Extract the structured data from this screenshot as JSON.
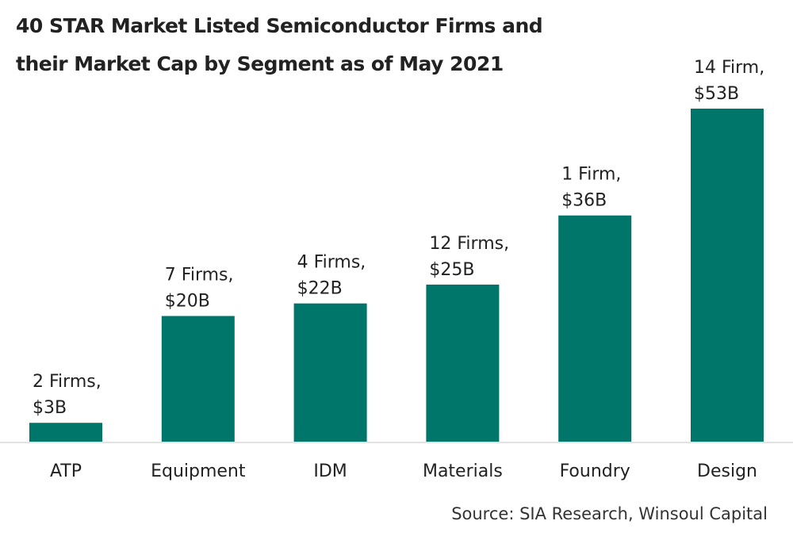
{
  "chart_data": {
    "type": "bar",
    "title_lines": [
      "40 STAR Market Listed Semiconductor Firms and",
      "their Market Cap by Segment as of May 2021"
    ],
    "categories": [
      "ATP",
      "Equipment",
      "IDM",
      "Materials",
      "Foundry",
      "Design"
    ],
    "values": [
      3,
      20,
      22,
      25,
      36,
      53
    ],
    "firms": [
      2,
      7,
      4,
      12,
      1,
      14
    ],
    "data_labels": [
      [
        "2 Firms,",
        "$3B"
      ],
      [
        "7 Firms,",
        "$20B"
      ],
      [
        "4 Firms,",
        "$22B"
      ],
      [
        "12 Firms,",
        "$25B"
      ],
      [
        "1 Firm,",
        "$36B"
      ],
      [
        "14 Firm,",
        "$53B"
      ]
    ],
    "unit": "$B",
    "xlabel": "",
    "ylabel": "",
    "ylim": [
      0,
      53
    ],
    "grid": false,
    "legend": "none",
    "bar_color": "#00756A",
    "source": "Source: SIA Research, Winsoul Capital"
  }
}
